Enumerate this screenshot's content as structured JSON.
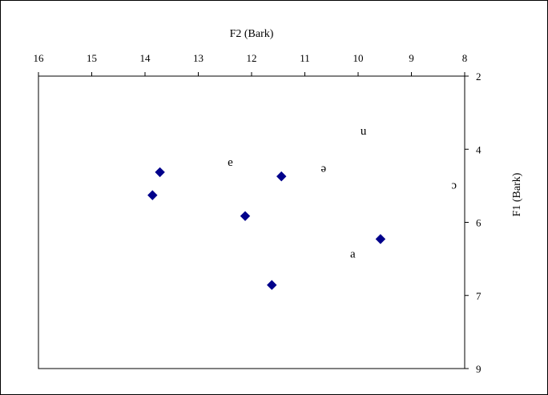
{
  "chart_data": {
    "type": "scatter",
    "title": "",
    "xlabel": "F2 (Bark)",
    "ylabel": "F1 (Bark)",
    "xlim": [
      16,
      8
    ],
    "ylim": [
      2,
      9
    ],
    "x_axis_position": "top",
    "y_axis_position": "right",
    "x_reversed": true,
    "y_reversed": true,
    "y_tick_labels": [
      "2",
      "4",
      "6",
      "7",
      "9"
    ],
    "x_ticks": [
      16,
      15,
      14,
      13,
      12,
      11,
      10,
      9,
      8
    ],
    "grid": false,
    "marker": "diamond",
    "marker_color": "#00008B",
    "series": [
      {
        "points": [
          {
            "x": 13.72,
            "y": 4.3
          },
          {
            "x": 13.86,
            "y": 4.85
          },
          {
            "x": 11.44,
            "y": 4.4
          },
          {
            "x": 12.12,
            "y": 5.35
          },
          {
            "x": 9.58,
            "y": 5.9
          },
          {
            "x": 11.62,
            "y": 7.0
          }
        ]
      }
    ],
    "annotations": [
      {
        "text": "u",
        "x": 9.9,
        "y": 3.3
      },
      {
        "text": "e",
        "x": 12.4,
        "y": 4.05
      },
      {
        "text": "ə",
        "x": 10.65,
        "y": 4.2
      },
      {
        "text": "ɔ",
        "x": 8.2,
        "y": 4.6
      },
      {
        "text": "a",
        "x": 10.1,
        "y": 6.25
      }
    ]
  }
}
